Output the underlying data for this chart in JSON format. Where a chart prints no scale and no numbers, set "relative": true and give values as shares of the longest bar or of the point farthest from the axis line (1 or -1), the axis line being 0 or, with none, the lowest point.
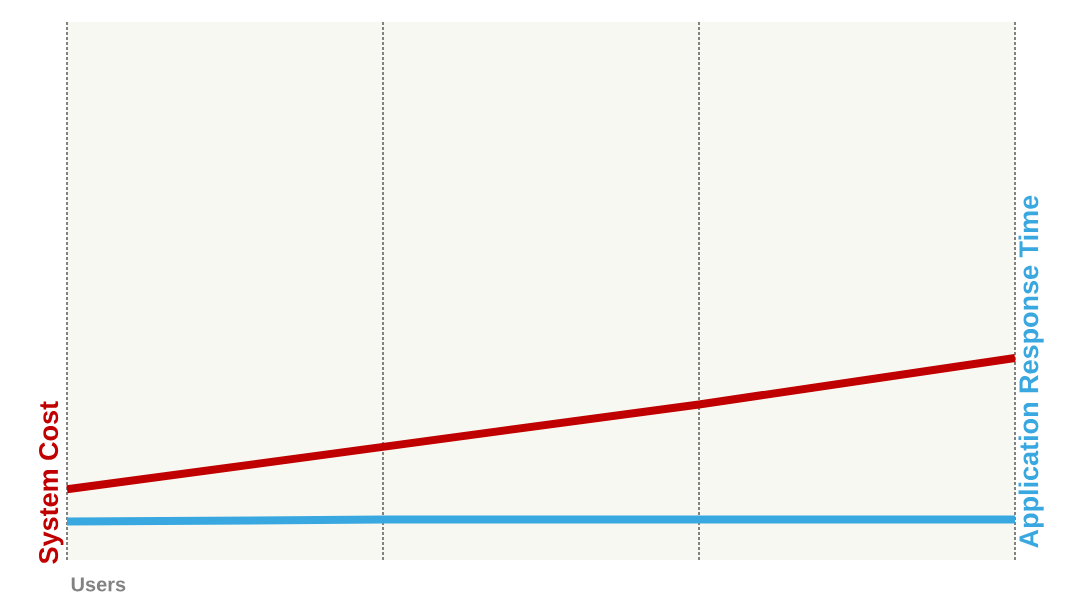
{
  "chart_data": {
    "type": "line",
    "relative": true,
    "xlabel": "Users",
    "ylabel": "System Cost",
    "y2label": "Application Response Time",
    "categories": [
      null,
      null,
      null,
      null
    ],
    "series": [
      {
        "color": "#c00000",
        "values": [
          0.35,
          0.56,
          0.77,
          1
        ]
      },
      {
        "color": "#3aa8e0",
        "values": [
          0.19,
          0.2,
          0.2,
          0.2
        ]
      }
    ],
    "grid": "x",
    "legend": false,
    "marker": "none",
    "line_style": "solid"
  }
}
